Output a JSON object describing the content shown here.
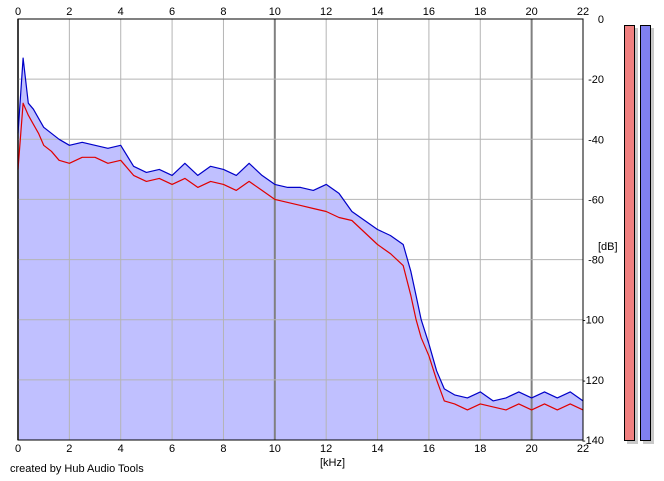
{
  "credit": "created by Hub Audio Tools",
  "chart_data": {
    "type": "line",
    "xlabel": "[kHz]",
    "ylabel": "[dB]",
    "xlim": [
      0,
      22
    ],
    "ylim": [
      -140,
      0
    ],
    "x_ticks": [
      "0",
      "2",
      "4",
      "6",
      "8",
      "10",
      "12",
      "14",
      "16",
      "18",
      "20",
      "22"
    ],
    "y_ticks": [
      "0",
      "-20",
      "-40",
      "-60",
      "-80",
      "-100",
      "-120",
      "-140"
    ],
    "grid": true,
    "fill_color": "#c0c0ff",
    "series": [
      {
        "color": "#e00000",
        "x": [
          0,
          0.2,
          0.4,
          0.6,
          0.8,
          1.0,
          1.3,
          1.6,
          2.0,
          2.5,
          3.0,
          3.5,
          4.0,
          4.5,
          5.0,
          5.5,
          6.0,
          6.5,
          7.0,
          7.5,
          8.0,
          8.5,
          9.0,
          9.5,
          10.0,
          10.5,
          11.0,
          11.5,
          12.0,
          12.5,
          13.0,
          13.5,
          14.0,
          14.5,
          15.0,
          15.3,
          15.5,
          15.7,
          16.0,
          16.3,
          16.6,
          17.0,
          17.5,
          18.0,
          18.5,
          19.0,
          19.5,
          20.0,
          20.5,
          21.0,
          21.5,
          22.0
        ],
        "y": [
          -50,
          -28,
          -32,
          -35,
          -38,
          -42,
          -44,
          -47,
          -48,
          -46,
          -46,
          -48,
          -47,
          -52,
          -54,
          -53,
          -55,
          -53,
          -56,
          -54,
          -55,
          -57,
          -54,
          -57,
          -60,
          -61,
          -62,
          -63,
          -64,
          -66,
          -67,
          -71,
          -75,
          -78,
          -82,
          -92,
          -100,
          -106,
          -112,
          -120,
          -127,
          -128,
          -130,
          -128,
          -129,
          -130,
          -128,
          -130,
          -128,
          -130,
          -128,
          -130
        ]
      },
      {
        "color": "#0000c8",
        "x": [
          0,
          0.2,
          0.4,
          0.6,
          0.8,
          1.0,
          1.3,
          1.6,
          2.0,
          2.5,
          3.0,
          3.5,
          4.0,
          4.5,
          5.0,
          5.5,
          6.0,
          6.5,
          7.0,
          7.5,
          8.0,
          8.5,
          9.0,
          9.5,
          10.0,
          10.5,
          11.0,
          11.5,
          12.0,
          12.5,
          13.0,
          13.5,
          14.0,
          14.5,
          15.0,
          15.3,
          15.5,
          15.7,
          16.0,
          16.3,
          16.6,
          17.0,
          17.5,
          18.0,
          18.5,
          19.0,
          19.5,
          20.0,
          20.5,
          21.0,
          21.5,
          22.0
        ],
        "y": [
          -38,
          -13,
          -28,
          -30,
          -33,
          -36,
          -38,
          -40,
          -42,
          -41,
          -42,
          -43,
          -42,
          -49,
          -51,
          -50,
          -52,
          -48,
          -52,
          -49,
          -50,
          -52,
          -48,
          -52,
          -55,
          -56,
          -56,
          -57,
          -55,
          -58,
          -64,
          -67,
          -70,
          -72,
          -75,
          -84,
          -92,
          -100,
          -108,
          -117,
          -123,
          -125,
          -126,
          -124,
          -127,
          -126,
          -124,
          -126,
          -124,
          -126,
          -124,
          -127
        ]
      }
    ]
  }
}
